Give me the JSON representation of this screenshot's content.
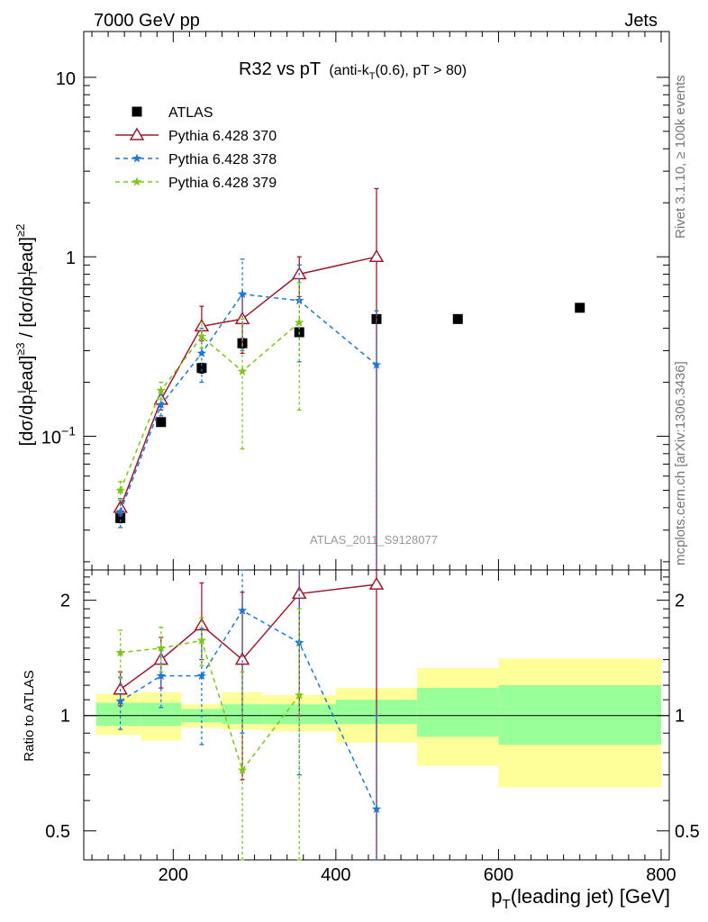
{
  "header": {
    "left": "7000 GeV pp",
    "right": "Jets"
  },
  "side_labels": {
    "rivet": "Rivet 3.1.10, ≥ 100k events",
    "mcplots": "mcplots.cern.ch [arXiv:1306.3436]"
  },
  "main_title": {
    "main": "R32 vs pT",
    "sub_prefix": "(anti-k",
    "sub_sub": "T",
    "sub_suffix": "(0.6), pT > 80)"
  },
  "watermark": "ATLAS_2011_S9128077",
  "y_axis_label": {
    "p1": "[dσ/dp",
    "p1_sub": "T",
    "p1_sup": "l",
    "p1_rest": "ead]",
    "p1_exp": "≥3",
    "p2": " / [dσ/dp",
    "p2_sub": "T",
    "p2_sup": "l",
    "p2_rest": "ead]",
    "p2_exp": "≥2"
  },
  "ratio_label": "Ratio to ATLAS",
  "x_axis_label": {
    "main": "p",
    "sub": "T",
    "rest": "(leading jet) [GeV]"
  },
  "colors": {
    "atlas": "#000000",
    "p370": "#9b1b30",
    "p378": "#1f77d4",
    "p379": "#7fc31c",
    "band_inner": "#99ff99",
    "band_outer": "#ffff99"
  },
  "chart_data": {
    "type": "scatter",
    "x_range": [
      90,
      810
    ],
    "x_ticks": [
      200,
      400,
      600,
      800
    ],
    "main": {
      "y_log": true,
      "y_range": [
        0.018,
        18
      ],
      "y_ticks": [
        {
          "v": 0.1,
          "base": "10",
          "exp": "−1"
        },
        {
          "v": 1,
          "base": "1",
          "exp": ""
        },
        {
          "v": 10,
          "base": "10",
          "exp": ""
        }
      ],
      "legend_position": "top-left",
      "series": [
        {
          "name": "ATLAS",
          "key": "atlas",
          "marker": "square",
          "line": "none",
          "points": [
            [
              135,
              0.035,
              0.033,
              0.037
            ],
            [
              185,
              0.12,
              0.115,
              0.125
            ],
            [
              235,
              0.24,
              0.225,
              0.255
            ],
            [
              285,
              0.33,
              0.31,
              0.35
            ],
            [
              355,
              0.38,
              0.36,
              0.4
            ],
            [
              450,
              0.45,
              0.43,
              0.47
            ],
            [
              550,
              0.45,
              0.44,
              0.46
            ],
            [
              700,
              0.52,
              0.51,
              0.53
            ]
          ]
        },
        {
          "name": "Pythia 6.428 370",
          "key": "p370",
          "marker": "triangle",
          "line": "solid",
          "points": [
            [
              135,
              0.04,
              0.036,
              0.044
            ],
            [
              185,
              0.16,
              0.14,
              0.18
            ],
            [
              235,
              0.41,
              0.34,
              0.53
            ],
            [
              285,
              0.45,
              0.29,
              0.62
            ],
            [
              355,
              0.8,
              0.6,
              1.0
            ],
            [
              450,
              1.0,
              0.003,
              2.4
            ]
          ]
        },
        {
          "name": "Pythia 6.428 378",
          "key": "p378",
          "marker": "star",
          "line": "dashed",
          "points": [
            [
              135,
              0.038,
              0.031,
              0.045
            ],
            [
              185,
              0.15,
              0.13,
              0.17
            ],
            [
              235,
              0.29,
              0.2,
              0.4
            ],
            [
              285,
              0.62,
              0.3,
              0.97
            ],
            [
              355,
              0.57,
              0.26,
              0.9
            ],
            [
              450,
              0.25,
              0.003,
              0.5
            ]
          ]
        },
        {
          "name": "Pythia 6.428 379",
          "key": "p379",
          "marker": "star",
          "line": "dashed",
          "points": [
            [
              135,
              0.05,
              0.044,
              0.056
            ],
            [
              185,
              0.18,
              0.16,
              0.2
            ],
            [
              235,
              0.36,
              0.31,
              0.43
            ],
            [
              285,
              0.23,
              0.085,
              0.45
            ],
            [
              355,
              0.43,
              0.14,
              0.72
            ]
          ]
        }
      ]
    },
    "ratio": {
      "y_log": true,
      "y_range": [
        0.42,
        2.4
      ],
      "y_ticks": [
        {
          "v": 0.5,
          "label": "0.5"
        },
        {
          "v": 1,
          "label": "1"
        },
        {
          "v": 2,
          "label": "2"
        }
      ],
      "bands": [
        {
          "x0": 105,
          "x1": 160,
          "in_lo": 0.94,
          "in_hi": 1.08,
          "out_lo": 0.89,
          "out_hi": 1.14
        },
        {
          "x0": 160,
          "x1": 210,
          "in_lo": 0.94,
          "in_hi": 1.08,
          "out_lo": 0.86,
          "out_hi": 1.15
        },
        {
          "x0": 210,
          "x1": 260,
          "in_lo": 0.96,
          "in_hi": 1.04,
          "out_lo": 0.93,
          "out_hi": 1.07
        },
        {
          "x0": 260,
          "x1": 310,
          "in_lo": 0.95,
          "in_hi": 1.07,
          "out_lo": 0.92,
          "out_hi": 1.15
        },
        {
          "x0": 310,
          "x1": 400,
          "in_lo": 0.95,
          "in_hi": 1.07,
          "out_lo": 0.91,
          "out_hi": 1.13
        },
        {
          "x0": 400,
          "x1": 500,
          "in_lo": 0.95,
          "in_hi": 1.1,
          "out_lo": 0.85,
          "out_hi": 1.18
        },
        {
          "x0": 500,
          "x1": 600,
          "in_lo": 0.88,
          "in_hi": 1.18,
          "out_lo": 0.74,
          "out_hi": 1.33
        },
        {
          "x0": 600,
          "x1": 800,
          "in_lo": 0.84,
          "in_hi": 1.2,
          "out_lo": 0.65,
          "out_hi": 1.41
        }
      ],
      "series": [
        {
          "key": "p370",
          "marker": "triangle",
          "line": "solid",
          "points": [
            [
              135,
              1.17,
              1.06,
              1.3
            ],
            [
              185,
              1.4,
              1.18,
              1.6
            ],
            [
              235,
              1.72,
              1.4,
              2.22
            ],
            [
              285,
              1.4,
              0.68,
              2.1
            ],
            [
              355,
              2.08,
              1.0,
              2.4
            ],
            [
              450,
              2.2,
              0.001,
              3.0
            ]
          ]
        },
        {
          "key": "p378",
          "marker": "star",
          "line": "dashed",
          "points": [
            [
              135,
              1.09,
              0.92,
              1.26
            ],
            [
              185,
              1.27,
              1.05,
              1.49
            ],
            [
              235,
              1.27,
              0.84,
              1.69
            ],
            [
              285,
              1.88,
              0.9,
              2.9
            ],
            [
              355,
              1.55,
              0.7,
              2.4
            ],
            [
              450,
              0.57,
              0.001,
              1.0
            ]
          ]
        },
        {
          "key": "p379",
          "marker": "star",
          "line": "dashed",
          "points": [
            [
              135,
              1.46,
              1.25,
              1.67
            ],
            [
              185,
              1.5,
              1.3,
              1.7
            ],
            [
              235,
              1.57,
              1.35,
              1.8
            ],
            [
              285,
              0.72,
              0.001,
              1.3
            ],
            [
              355,
              1.13,
              0.001,
              1.9
            ]
          ]
        }
      ]
    }
  }
}
